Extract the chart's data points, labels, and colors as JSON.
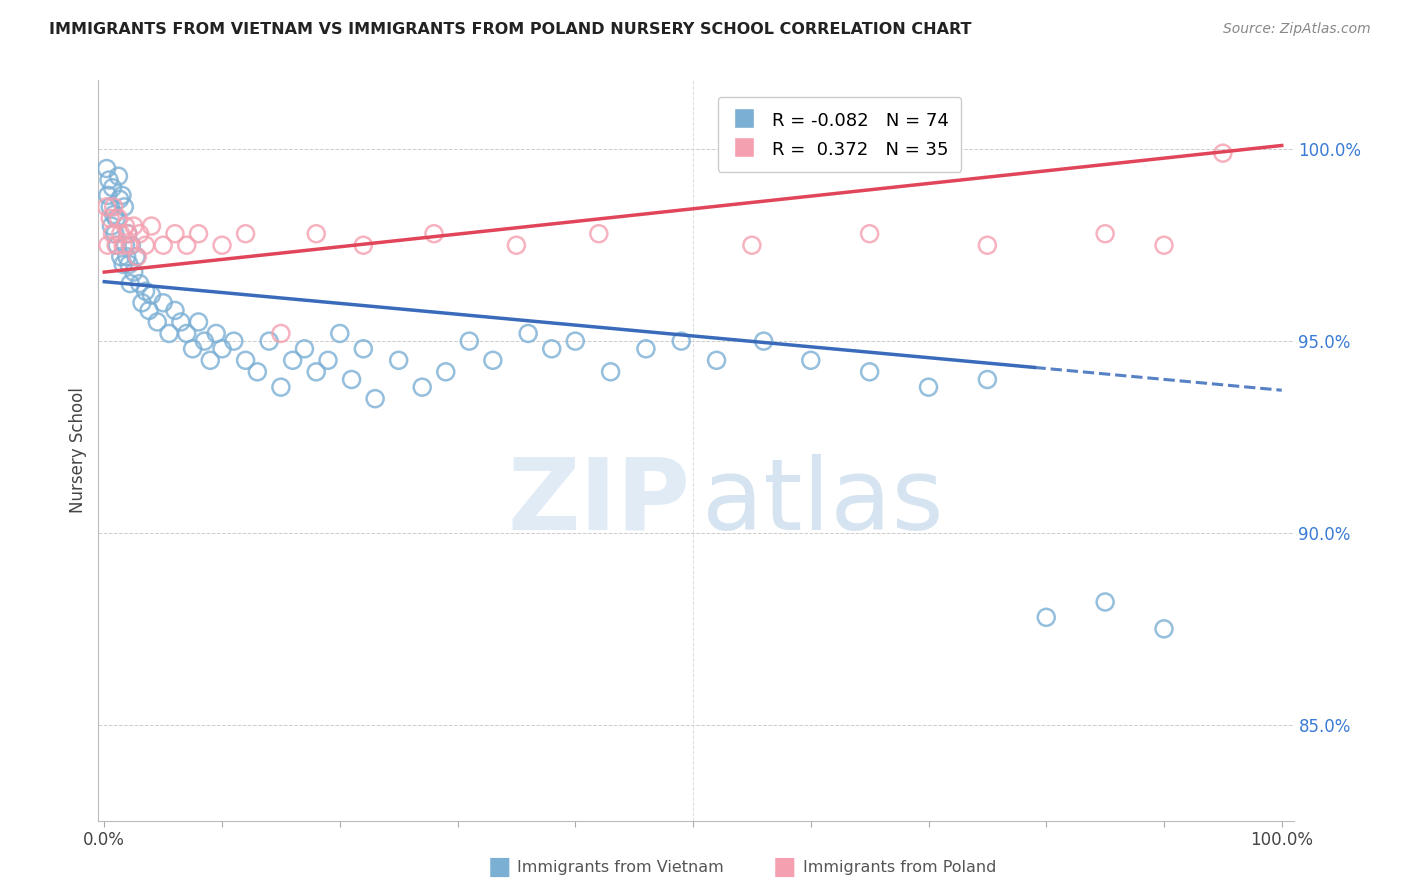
{
  "title": "IMMIGRANTS FROM VIETNAM VS IMMIGRANTS FROM POLAND NURSERY SCHOOL CORRELATION CHART",
  "source": "Source: ZipAtlas.com",
  "ylabel": "Nursery School",
  "watermark_zip": "ZIP",
  "watermark_atlas": "atlas",
  "vietnam_R": -0.082,
  "vietnam_N": 74,
  "poland_R": 0.372,
  "poland_N": 35,
  "vietnam_color": "#7BAFD4",
  "poland_color": "#F4A0B0",
  "trend_vietnam_color": "#3A6BBB",
  "trend_poland_color": "#E0455A",
  "yticks": [
    85.0,
    90.0,
    95.0,
    100.0
  ],
  "xticks": [
    0.0,
    10.0,
    20.0,
    30.0,
    40.0,
    50.0,
    60.0,
    70.0,
    80.0,
    90.0,
    100.0
  ],
  "ylim": [
    82.5,
    101.8
  ],
  "xlim": [
    -0.5,
    101.0
  ],
  "vietnam_trend_x0": 0.0,
  "vietnam_trend_y0": 96.55,
  "vietnam_trend_x1": 100.0,
  "vietnam_trend_y1": 93.72,
  "vietnam_solid_end": 79.0,
  "poland_trend_x0": 0.0,
  "poland_trend_y0": 96.8,
  "poland_trend_x1": 100.0,
  "poland_trend_y1": 100.1,
  "vietnam_x": [
    0.2,
    0.3,
    0.4,
    0.5,
    0.6,
    0.7,
    0.8,
    0.9,
    1.0,
    1.1,
    1.2,
    1.3,
    1.4,
    1.5,
    1.6,
    1.7,
    1.8,
    1.9,
    2.0,
    2.1,
    2.2,
    2.3,
    2.5,
    2.7,
    3.0,
    3.2,
    3.5,
    3.8,
    4.0,
    4.5,
    5.0,
    5.5,
    6.0,
    6.5,
    7.0,
    7.5,
    8.0,
    8.5,
    9.0,
    9.5,
    10.0,
    11.0,
    12.0,
    13.0,
    14.0,
    15.0,
    16.0,
    17.0,
    18.0,
    19.0,
    20.0,
    21.0,
    22.0,
    23.0,
    25.0,
    27.0,
    29.0,
    31.0,
    33.0,
    36.0,
    38.0,
    40.0,
    43.0,
    46.0,
    49.0,
    52.0,
    56.0,
    60.0,
    65.0,
    70.0,
    75.0,
    80.0,
    85.0,
    90.0
  ],
  "vietnam_y": [
    99.5,
    98.8,
    99.2,
    98.5,
    98.0,
    99.0,
    98.3,
    97.8,
    98.2,
    97.5,
    99.3,
    98.7,
    97.2,
    98.8,
    97.0,
    98.5,
    97.5,
    97.2,
    97.8,
    97.0,
    96.5,
    97.5,
    96.8,
    97.2,
    96.5,
    96.0,
    96.3,
    95.8,
    96.2,
    95.5,
    96.0,
    95.2,
    95.8,
    95.5,
    95.2,
    94.8,
    95.5,
    95.0,
    94.5,
    95.2,
    94.8,
    95.0,
    94.5,
    94.2,
    95.0,
    93.8,
    94.5,
    94.8,
    94.2,
    94.5,
    95.2,
    94.0,
    94.8,
    93.5,
    94.5,
    93.8,
    94.2,
    95.0,
    94.5,
    95.2,
    94.8,
    95.0,
    94.2,
    94.8,
    95.0,
    94.5,
    95.0,
    94.5,
    94.2,
    93.8,
    94.0,
    87.8,
    88.2,
    87.5
  ],
  "poland_x": [
    0.2,
    0.3,
    0.5,
    0.7,
    0.8,
    1.0,
    1.2,
    1.4,
    1.6,
    1.8,
    2.0,
    2.2,
    2.5,
    2.8,
    3.0,
    3.5,
    4.0,
    5.0,
    6.0,
    7.0,
    8.0,
    10.0,
    12.0,
    15.0,
    18.0,
    22.0,
    28.0,
    35.0,
    42.0,
    55.0,
    65.0,
    75.0,
    85.0,
    90.0,
    95.0
  ],
  "poland_y": [
    98.5,
    97.5,
    98.2,
    97.8,
    98.5,
    97.5,
    98.2,
    97.8,
    97.5,
    98.0,
    97.8,
    97.5,
    98.0,
    97.2,
    97.8,
    97.5,
    98.0,
    97.5,
    97.8,
    97.5,
    97.8,
    97.5,
    97.8,
    95.2,
    97.8,
    97.5,
    97.8,
    97.5,
    97.8,
    97.5,
    97.8,
    97.5,
    97.8,
    97.5,
    99.9
  ]
}
